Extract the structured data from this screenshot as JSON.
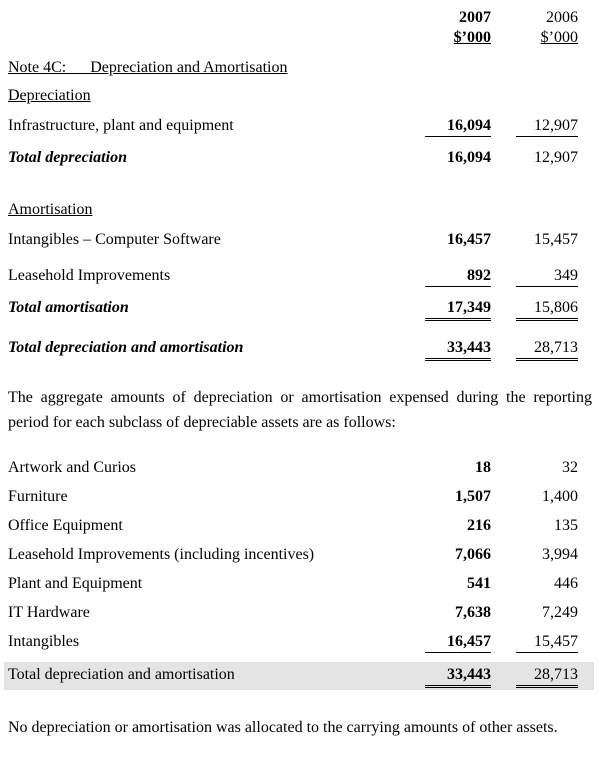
{
  "header": {
    "col_2007": {
      "year": "2007",
      "unit": "$’000"
    },
    "col_2006": {
      "year": "2006",
      "unit": "$’000"
    }
  },
  "note_title": "Note 4C:      Depreciation and Amortisation",
  "depreciation": {
    "heading": "Depreciation",
    "rows": [
      {
        "label": "Infrastructure, plant and equipment",
        "v2007": "16,094",
        "v2006": "12,907"
      }
    ],
    "total": {
      "label": "Total depreciation",
      "v2007": "16,094",
      "v2006": "12,907"
    }
  },
  "amortisation": {
    "heading": "Amortisation",
    "rows": [
      {
        "label": "Intangibles – Computer Software",
        "v2007": "16,457",
        "v2006": "15,457"
      },
      {
        "label": "Leasehold Improvements",
        "v2007": "892",
        "v2006": "349"
      }
    ],
    "total": {
      "label": "Total amortisation",
      "v2007": "17,349",
      "v2006": "15,806"
    }
  },
  "grand_total": {
    "label": "Total depreciation and amortisation",
    "v2007": "33,443",
    "v2006": "28,713"
  },
  "aggregate_paragraph": "The aggregate amounts of depreciation or amortisation expensed during the reporting period for each subclass of depreciable assets are as follows:",
  "subclass_table": {
    "rows": [
      {
        "label": "Artwork and Curios",
        "v2007": "18",
        "v2006": "32"
      },
      {
        "label": "Furniture",
        "v2007": "1,507",
        "v2006": "1,400"
      },
      {
        "label": "Office Equipment",
        "v2007": "216",
        "v2006": "135"
      },
      {
        "label": "Leasehold Improvements (including incentives)",
        "v2007": "7,066",
        "v2006": "3,994"
      },
      {
        "label": "Plant and Equipment",
        "v2007": "541",
        "v2006": "446"
      },
      {
        "label": "IT Hardware",
        "v2007": "7,638",
        "v2006": "7,249"
      },
      {
        "label": "Intangibles",
        "v2007": "16,457",
        "v2006": "15,457"
      }
    ],
    "total": {
      "label": "Total depreciation and amortisation",
      "v2007": "33,443",
      "v2006": "28,713"
    }
  },
  "closing_paragraph": "No depreciation or amortisation was allocated to the carrying amounts of other assets.",
  "colors": {
    "highlight_row": "#e4e4e4",
    "text": "#000000",
    "background": "#ffffff"
  }
}
